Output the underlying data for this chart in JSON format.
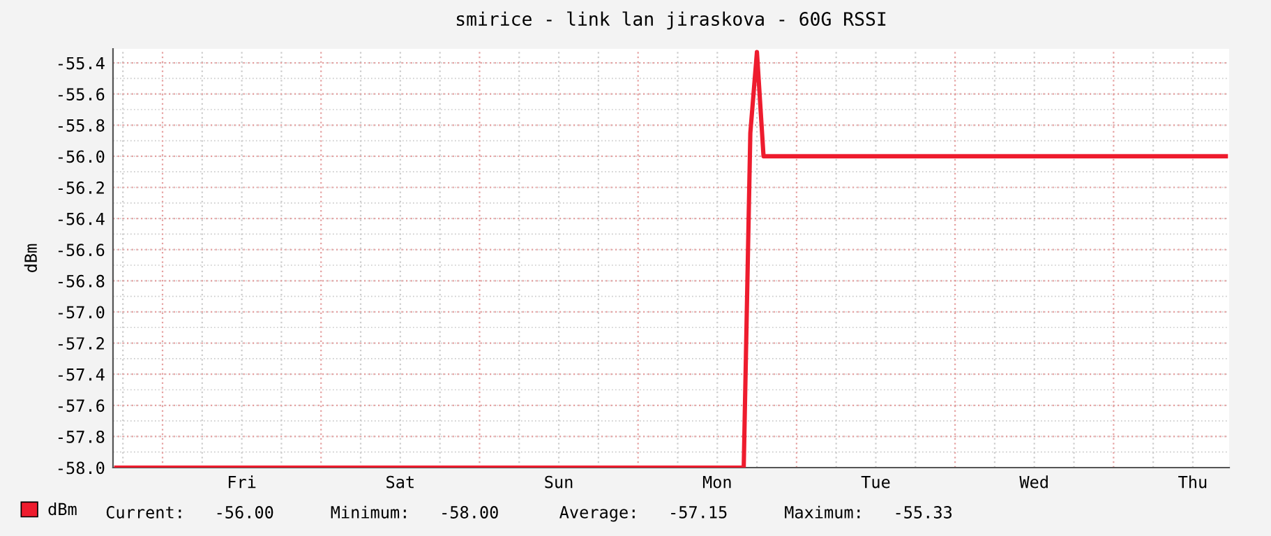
{
  "chart_data": {
    "type": "line",
    "title": "smirice - link lan jiraskova - 60G RSSI",
    "ylabel": "dBm",
    "categories": [
      null,
      null,
      null,
      null,
      null,
      null,
      null,
      null,
      null,
      null,
      null,
      null,
      null,
      null,
      null,
      null,
      null,
      null,
      null,
      "Fri",
      null,
      null,
      null,
      null,
      null,
      null,
      null,
      null,
      null,
      null,
      null,
      null,
      null,
      null,
      null,
      null,
      null,
      null,
      null,
      null,
      null,
      null,
      null,
      "Sat",
      null,
      null,
      null,
      null,
      null,
      null,
      null,
      null,
      null,
      null,
      null,
      null,
      null,
      null,
      null,
      null,
      null,
      null,
      null,
      null,
      null,
      null,
      null,
      "Sun",
      null,
      null,
      null,
      null,
      null,
      null,
      null,
      null,
      null,
      null,
      null,
      null,
      null,
      null,
      null,
      null,
      null,
      null,
      null,
      null,
      null,
      null,
      null,
      "Mon",
      null,
      null,
      null,
      null,
      null,
      null,
      null,
      null,
      null,
      null,
      null,
      null,
      null,
      null,
      null,
      null,
      null,
      null,
      null,
      null,
      null,
      null,
      null,
      "Tue",
      null,
      null,
      null,
      null,
      null,
      null,
      null,
      null,
      null,
      null,
      null,
      null,
      null,
      null,
      null,
      null,
      null,
      null,
      null,
      null,
      null,
      null,
      null,
      "Wed",
      null,
      null,
      null,
      null,
      null,
      null,
      null,
      null,
      null,
      null,
      null,
      null,
      null,
      null,
      null,
      null,
      null,
      null,
      null,
      null,
      null,
      null,
      null,
      "Thu",
      null,
      null,
      null,
      null,
      null
    ],
    "series": [
      {
        "name": "dBm",
        "color": "#ee1c2e",
        "values": [
          -58.0,
          -58.0,
          -58.0,
          -58.0,
          -58.0,
          -58.0,
          -58.0,
          -58.0,
          -58.0,
          -58.0,
          -58.0,
          -58.0,
          -58.0,
          -58.0,
          -58.0,
          -58.0,
          -58.0,
          -58.0,
          -58.0,
          -58.0,
          -58.0,
          -58.0,
          -58.0,
          -58.0,
          -58.0,
          -58.0,
          -58.0,
          -58.0,
          -58.0,
          -58.0,
          -58.0,
          -58.0,
          -58.0,
          -58.0,
          -58.0,
          -58.0,
          -58.0,
          -58.0,
          -58.0,
          -58.0,
          -58.0,
          -58.0,
          -58.0,
          -58.0,
          -58.0,
          -58.0,
          -58.0,
          -58.0,
          -58.0,
          -58.0,
          -58.0,
          -58.0,
          -58.0,
          -58.0,
          -58.0,
          -58.0,
          -58.0,
          -58.0,
          -58.0,
          -58.0,
          -58.0,
          -58.0,
          -58.0,
          -58.0,
          -58.0,
          -58.0,
          -58.0,
          -58.0,
          -58.0,
          -58.0,
          -58.0,
          -58.0,
          -58.0,
          -58.0,
          -58.0,
          -58.0,
          -58.0,
          -58.0,
          -58.0,
          -58.0,
          -58.0,
          -58.0,
          -58.0,
          -58.0,
          -58.0,
          -58.0,
          -58.0,
          -58.0,
          -58.0,
          -58.0,
          -58.0,
          -58.0,
          -58.0,
          -58.0,
          -58.0,
          -58.0,
          -55.85,
          -55.33,
          -56.0,
          -56.0,
          -56.0,
          -56.0,
          -56.0,
          -56.0,
          -56.0,
          -56.0,
          -56.0,
          -56.0,
          -56.0,
          -56.0,
          -56.0,
          -56.0,
          -56.0,
          -56.0,
          -56.0,
          -56.0,
          -56.0,
          -56.0,
          -56.0,
          -56.0,
          -56.0,
          -56.0,
          -56.0,
          -56.0,
          -56.0,
          -56.0,
          -56.0,
          -56.0,
          -56.0,
          -56.0,
          -56.0,
          -56.0,
          -56.0,
          -56.0,
          -56.0,
          -56.0,
          -56.0,
          -56.0,
          -56.0,
          -56.0,
          -56.0,
          -56.0,
          -56.0,
          -56.0,
          -56.0,
          -56.0,
          -56.0,
          -56.0,
          -56.0,
          -56.0,
          -56.0,
          -56.0,
          -56.0,
          -56.0,
          -56.0,
          -56.0,
          -56.0,
          -56.0,
          -56.0,
          -56.0,
          -56.0,
          -56.0,
          -56.0,
          -56.0,
          -56.0,
          -56.0,
          -56.0,
          -56.0,
          -56.0
        ]
      }
    ],
    "ylim": [
      -58.0,
      -55.31
    ],
    "yticks": [
      {
        "value": -58.0,
        "label": "-58.0"
      },
      {
        "value": -57.8,
        "label": "-57.8"
      },
      {
        "value": -57.6,
        "label": "-57.6"
      },
      {
        "value": -57.4,
        "label": "-57.4"
      },
      {
        "value": -57.2,
        "label": "-57.2"
      },
      {
        "value": -57.0,
        "label": "-57.0"
      },
      {
        "value": -56.8,
        "label": "-56.8"
      },
      {
        "value": -56.6,
        "label": "-56.6"
      },
      {
        "value": -56.4,
        "label": "-56.4"
      },
      {
        "value": -56.2,
        "label": "-56.2"
      },
      {
        "value": -56.0,
        "label": "-56.0"
      },
      {
        "value": -55.8,
        "label": "-55.8"
      },
      {
        "value": -55.6,
        "label": "-55.6"
      },
      {
        "value": -55.4,
        "label": "-55.4"
      }
    ],
    "grid": true,
    "legend": "bottom left",
    "annotations": [
      "Current:   -56.00",
      "Minimum:   -58.00",
      "Average:   -57.15",
      "Maximum:   -55.33"
    ]
  }
}
